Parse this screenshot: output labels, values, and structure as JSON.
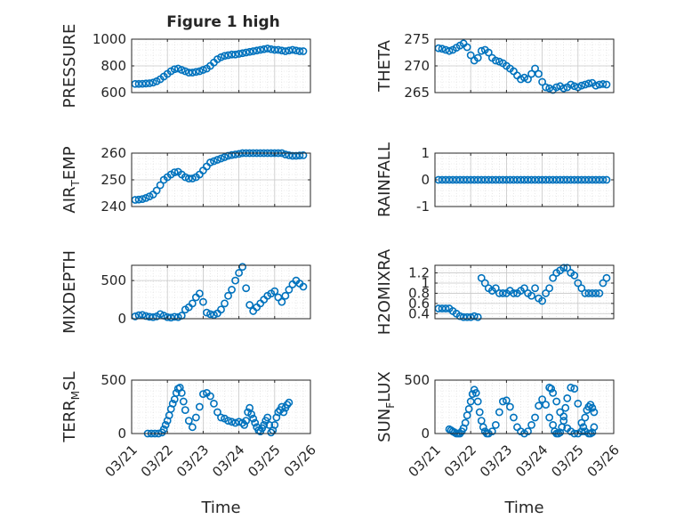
{
  "figure": {
    "title": "Figure 1 high"
  },
  "chart_data": [
    {
      "type": "scatter",
      "ylabel": "PRESSURE",
      "ylim": [
        600,
        1000
      ],
      "yticks": [
        "600",
        "800",
        "1000"
      ],
      "yticks_values": [
        600,
        800,
        1000
      ],
      "xlim": [
        0,
        5
      ],
      "show_xticks": false,
      "series": [
        {
          "x": [
            0.1,
            0.2,
            0.3,
            0.4,
            0.5,
            0.6,
            0.7,
            0.8,
            0.9,
            1.0,
            1.1,
            1.2,
            1.3,
            1.4,
            1.5,
            1.6,
            1.7,
            1.8,
            1.9,
            2.0,
            2.1,
            2.2,
            2.3,
            2.4,
            2.5,
            2.6,
            2.7,
            2.8,
            2.9,
            3.0,
            3.1,
            3.2,
            3.3,
            3.4,
            3.5,
            3.6,
            3.7,
            3.8,
            3.9,
            4.0,
            4.1,
            4.2,
            4.3,
            4.4,
            4.5,
            4.6,
            4.7,
            4.8
          ],
          "y": [
            665,
            665,
            666,
            668,
            670,
            675,
            685,
            700,
            720,
            740,
            760,
            775,
            780,
            770,
            760,
            750,
            750,
            755,
            760,
            770,
            780,
            800,
            825,
            850,
            865,
            875,
            880,
            885,
            885,
            890,
            895,
            900,
            905,
            910,
            915,
            920,
            925,
            930,
            925,
            920,
            920,
            915,
            910,
            915,
            920,
            915,
            910,
            910
          ]
        }
      ]
    },
    {
      "type": "scatter",
      "ylabel": "THETA",
      "ylim": [
        265,
        275
      ],
      "yticks": [
        "265",
        "270",
        "275"
      ],
      "yticks_values": [
        265,
        270,
        275
      ],
      "xlim": [
        0,
        5
      ],
      "show_xticks": false,
      "series": [
        {
          "x": [
            0.1,
            0.2,
            0.3,
            0.4,
            0.5,
            0.6,
            0.7,
            0.8,
            0.9,
            1.0,
            1.1,
            1.2,
            1.3,
            1.4,
            1.5,
            1.6,
            1.7,
            1.8,
            1.9,
            2.0,
            2.1,
            2.2,
            2.3,
            2.4,
            2.5,
            2.6,
            2.7,
            2.8,
            2.9,
            3.0,
            3.1,
            3.2,
            3.3,
            3.4,
            3.5,
            3.6,
            3.7,
            3.8,
            3.9,
            4.0,
            4.1,
            4.2,
            4.3,
            4.4,
            4.5,
            4.6,
            4.7,
            4.8
          ],
          "y": [
            273.3,
            273.2,
            273.0,
            272.8,
            273.0,
            273.4,
            273.8,
            274.2,
            273.5,
            272.0,
            271.0,
            271.5,
            272.8,
            273.0,
            272.5,
            271.5,
            271.0,
            270.8,
            270.5,
            270.0,
            269.5,
            269.0,
            268.2,
            267.5,
            267.8,
            267.5,
            268.5,
            269.5,
            268.5,
            267.0,
            266.0,
            265.8,
            265.5,
            266.0,
            266.2,
            265.8,
            266.0,
            266.5,
            266.2,
            266.0,
            266.3,
            266.5,
            266.7,
            266.8,
            266.3,
            266.5,
            266.6,
            266.5
          ]
        }
      ]
    },
    {
      "type": "scatter",
      "ylabel": "AIR_TEMP",
      "ylabel_parts": [
        "AIR",
        "T",
        "EMP"
      ],
      "ylim": [
        240,
        260
      ],
      "yticks": [
        "240",
        "250",
        "260"
      ],
      "yticks_values": [
        240,
        250,
        260
      ],
      "xlim": [
        0,
        5
      ],
      "show_xticks": false,
      "series": [
        {
          "x": [
            0.1,
            0.2,
            0.3,
            0.4,
            0.5,
            0.6,
            0.7,
            0.8,
            0.9,
            1.0,
            1.1,
            1.2,
            1.3,
            1.4,
            1.5,
            1.6,
            1.7,
            1.8,
            1.9,
            2.0,
            2.1,
            2.2,
            2.3,
            2.4,
            2.5,
            2.6,
            2.7,
            2.8,
            2.9,
            3.0,
            3.1,
            3.2,
            3.3,
            3.4,
            3.5,
            3.6,
            3.7,
            3.8,
            3.9,
            4.0,
            4.1,
            4.2,
            4.3,
            4.4,
            4.5,
            4.6,
            4.7,
            4.8
          ],
          "y": [
            242.5,
            242.6,
            242.8,
            243.2,
            243.8,
            244.5,
            246.0,
            248.0,
            250.0,
            251.0,
            252.0,
            252.8,
            253.0,
            252.0,
            251.0,
            250.5,
            250.5,
            251.0,
            252.0,
            253.5,
            255.0,
            256.5,
            257.0,
            257.5,
            258.0,
            258.5,
            259.0,
            259.3,
            259.5,
            259.7,
            260.0,
            260.2,
            260.5,
            260.8,
            261.0,
            260.8,
            260.5,
            260.3,
            260.5,
            260.6,
            260.4,
            260.0,
            259.5,
            259.2,
            259.0,
            259.0,
            259.1,
            259.2
          ]
        }
      ]
    },
    {
      "type": "scatter",
      "ylabel": "RAINFALL",
      "ylim": [
        -1,
        1
      ],
      "yticks": [
        "-1",
        "0",
        "1"
      ],
      "yticks_values": [
        -1,
        0,
        1
      ],
      "xlim": [
        0,
        5
      ],
      "show_xticks": false,
      "series": [
        {
          "x": [
            0.1,
            0.2,
            0.3,
            0.4,
            0.5,
            0.6,
            0.7,
            0.8,
            0.9,
            1.0,
            1.1,
            1.2,
            1.3,
            1.4,
            1.5,
            1.6,
            1.7,
            1.8,
            1.9,
            2.0,
            2.1,
            2.2,
            2.3,
            2.4,
            2.5,
            2.6,
            2.7,
            2.8,
            2.9,
            3.0,
            3.1,
            3.2,
            3.3,
            3.4,
            3.5,
            3.6,
            3.7,
            3.8,
            3.9,
            4.0,
            4.1,
            4.2,
            4.3,
            4.4,
            4.5,
            4.6,
            4.7,
            4.8
          ],
          "y": [
            0,
            0,
            0,
            0,
            0,
            0,
            0,
            0,
            0,
            0,
            0,
            0,
            0,
            0,
            0,
            0,
            0,
            0,
            0,
            0,
            0,
            0,
            0,
            0,
            0,
            0,
            0,
            0,
            0,
            0,
            0,
            0,
            0,
            0,
            0,
            0,
            0,
            0,
            0,
            0,
            0,
            0,
            0,
            0,
            0,
            0,
            0,
            0
          ]
        }
      ]
    },
    {
      "type": "scatter",
      "ylabel": "MIXDEPTH",
      "ylim": [
        0,
        700
      ],
      "yticks": [
        "0",
        "500"
      ],
      "yticks_values": [
        0,
        500
      ],
      "xlim": [
        0,
        5
      ],
      "show_xticks": false,
      "series": [
        {
          "x": [
            0.1,
            0.2,
            0.3,
            0.4,
            0.5,
            0.6,
            0.7,
            0.8,
            0.9,
            1.0,
            1.1,
            1.2,
            1.3,
            1.4,
            1.5,
            1.6,
            1.7,
            1.8,
            1.9,
            2.0,
            2.1,
            2.2,
            2.3,
            2.4,
            2.5,
            2.6,
            2.7,
            2.8,
            2.9,
            3.0,
            3.1,
            3.2,
            3.3,
            3.4,
            3.5,
            3.6,
            3.7,
            3.8,
            3.9,
            4.0,
            4.1,
            4.2,
            4.3,
            4.4,
            4.5,
            4.6,
            4.7,
            4.8
          ],
          "y": [
            30,
            45,
            50,
            35,
            25,
            20,
            30,
            60,
            40,
            20,
            15,
            25,
            20,
            40,
            120,
            150,
            200,
            280,
            330,
            220,
            80,
            60,
            50,
            70,
            120,
            200,
            300,
            380,
            500,
            600,
            680,
            400,
            180,
            100,
            150,
            200,
            250,
            300,
            330,
            360,
            280,
            220,
            300,
            380,
            450,
            500,
            460,
            420
          ]
        }
      ]
    },
    {
      "type": "scatter",
      "ylabel": "H2OMIXRA",
      "ylim": [
        0.3,
        1.35
      ],
      "yticks": [
        "0.4",
        "0.6",
        "0.8",
        "1",
        "1.2"
      ],
      "yticks_values": [
        0.4,
        0.6,
        0.8,
        1.0,
        1.2
      ],
      "xlim": [
        0,
        5
      ],
      "show_xticks": false,
      "series": [
        {
          "x": [
            0.1,
            0.2,
            0.3,
            0.4,
            0.5,
            0.6,
            0.7,
            0.8,
            0.9,
            1.0,
            1.1,
            1.2,
            1.3,
            1.4,
            1.5,
            1.6,
            1.7,
            1.8,
            1.9,
            2.0,
            2.1,
            2.2,
            2.3,
            2.4,
            2.5,
            2.6,
            2.7,
            2.8,
            2.9,
            3.0,
            3.1,
            3.2,
            3.3,
            3.4,
            3.5,
            3.6,
            3.7,
            3.8,
            3.9,
            4.0,
            4.1,
            4.2,
            4.3,
            4.4,
            4.5,
            4.6,
            4.7,
            4.8
          ],
          "y": [
            0.5,
            0.5,
            0.5,
            0.5,
            0.45,
            0.4,
            0.35,
            0.33,
            0.33,
            0.33,
            0.35,
            0.33,
            1.1,
            1.0,
            0.9,
            0.85,
            0.9,
            0.8,
            0.8,
            0.8,
            0.85,
            0.8,
            0.8,
            0.85,
            0.9,
            0.8,
            0.75,
            0.9,
            0.7,
            0.65,
            0.8,
            0.9,
            1.1,
            1.2,
            1.25,
            1.3,
            1.3,
            1.2,
            1.15,
            1.0,
            0.9,
            0.8,
            0.8,
            0.8,
            0.8,
            0.8,
            1.0,
            1.1
          ]
        }
      ]
    },
    {
      "type": "scatter",
      "ylabel": "TERR_MSL",
      "ylabel_parts": [
        "TERR",
        "M",
        "SL"
      ],
      "ylim": [
        0,
        500
      ],
      "yticks": [
        "0",
        "500"
      ],
      "yticks_values": [
        0,
        500
      ],
      "xlim": [
        0,
        5
      ],
      "xticks": [
        "03/21",
        "03/22",
        "03/23",
        "03/24",
        "03/25",
        "03/26"
      ],
      "xticks_values": [
        0,
        1,
        2,
        3,
        4,
        5
      ],
      "xlabel": "Time",
      "show_xticks": true,
      "series": [
        {
          "x": [
            0.45,
            0.55,
            0.65,
            0.75,
            0.85,
            0.9,
            0.95,
            1.0,
            1.05,
            1.1,
            1.15,
            1.2,
            1.25,
            1.3,
            1.35,
            1.4,
            1.45,
            1.5,
            1.6,
            1.7,
            1.8,
            1.9,
            2.0,
            2.1,
            2.2,
            2.3,
            2.4,
            2.5,
            2.6,
            2.7,
            2.8,
            2.9,
            3.0,
            3.1,
            3.15,
            3.2,
            3.25,
            3.3,
            3.35,
            3.4,
            3.45,
            3.5,
            3.55,
            3.6,
            3.65,
            3.7,
            3.75,
            3.8,
            3.85,
            3.9,
            3.95,
            4.0,
            4.05,
            4.1,
            4.15,
            4.2,
            4.25,
            4.3,
            4.35,
            4.4
          ],
          "y": [
            0,
            0,
            0,
            0,
            10,
            40,
            80,
            120,
            170,
            230,
            280,
            320,
            380,
            420,
            430,
            380,
            300,
            220,
            120,
            60,
            150,
            250,
            370,
            380,
            350,
            280,
            200,
            150,
            140,
            120,
            110,
            100,
            110,
            100,
            80,
            120,
            200,
            240,
            180,
            140,
            100,
            60,
            30,
            20,
            50,
            80,
            120,
            150,
            80,
            10,
            30,
            80,
            150,
            200,
            220,
            250,
            200,
            240,
            270,
            290
          ]
        }
      ]
    },
    {
      "type": "scatter",
      "ylabel": "SUN_FLUX",
      "ylabel_parts": [
        "SUN",
        "F",
        "LUX"
      ],
      "ylim": [
        0,
        500
      ],
      "yticks": [
        "0",
        "500"
      ],
      "yticks_values": [
        0,
        500
      ],
      "xlim": [
        0,
        5
      ],
      "xticks": [
        "03/21",
        "03/22",
        "03/23",
        "03/24",
        "03/25",
        "03/26"
      ],
      "xticks_values": [
        0,
        1,
        2,
        3,
        4,
        5
      ],
      "xlabel": "Time",
      "show_xticks": true,
      "series": [
        {
          "x": [
            0.4,
            0.45,
            0.5,
            0.55,
            0.6,
            0.65,
            0.7,
            0.75,
            0.8,
            0.85,
            0.9,
            0.95,
            1.0,
            1.05,
            1.1,
            1.15,
            1.2,
            1.25,
            1.3,
            1.35,
            1.4,
            1.45,
            1.5,
            1.6,
            1.7,
            1.8,
            1.9,
            2.0,
            2.1,
            2.2,
            2.3,
            2.4,
            2.5,
            2.6,
            2.7,
            2.8,
            2.9,
            3.0,
            3.1,
            3.2,
            3.3,
            3.35,
            3.4,
            3.45,
            3.5,
            3.55,
            3.6,
            3.65,
            3.7,
            3.8,
            3.9,
            4.0,
            4.1,
            4.2,
            4.3,
            4.35,
            4.4,
            4.45
          ],
          "y": [
            40,
            30,
            20,
            10,
            0,
            0,
            0,
            20,
            50,
            100,
            170,
            230,
            300,
            370,
            410,
            380,
            300,
            200,
            120,
            60,
            20,
            0,
            0,
            20,
            80,
            200,
            300,
            310,
            250,
            150,
            60,
            20,
            0,
            20,
            80,
            150,
            260,
            320,
            270,
            150,
            80,
            20,
            0,
            0,
            10,
            60,
            160,
            240,
            330,
            430,
            420,
            280,
            100,
            20,
            0,
            0,
            10,
            60
          ]
        }
      ],
      "series_extra": [
        {
          "x": [
            3.2,
            3.25,
            3.3,
            3.4,
            3.5,
            3.6,
            3.7,
            3.8,
            3.9,
            4.0,
            4.1,
            4.15,
            4.2,
            4.25,
            4.3,
            4.35,
            4.4,
            4.45
          ],
          "y": [
            430,
            420,
            380,
            300,
            200,
            120,
            50,
            20,
            0,
            0,
            20,
            60,
            150,
            220,
            250,
            270,
            240,
            200
          ]
        }
      ]
    }
  ]
}
